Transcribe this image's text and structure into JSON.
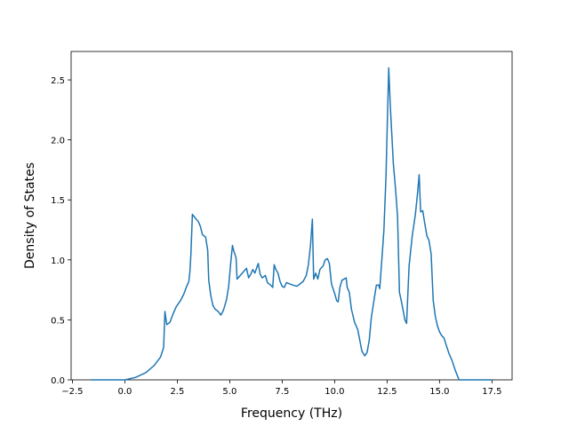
{
  "chart_data": {
    "type": "line",
    "xlabel": "Frequency (THz)",
    "ylabel": "Density of States",
    "xlim": [
      -2.56,
      18.46
    ],
    "ylim": [
      0,
      2.737
    ],
    "xticks": [
      {
        "value": -2.5,
        "label": "−2.5"
      },
      {
        "value": 0,
        "label": "0.0"
      },
      2.5,
      {
        "value": 5,
        "label": "5.0"
      },
      7.5,
      {
        "value": 10,
        "label": "10.0"
      },
      12.5,
      {
        "value": 15,
        "label": "15.0"
      },
      17.5
    ],
    "yticks": [
      {
        "value": 0,
        "label": "0.0"
      },
      0.5,
      {
        "value": 1,
        "label": "1.0"
      },
      1.5,
      {
        "value": 2,
        "label": "2.0"
      },
      2.5
    ],
    "series": [
      {
        "color": "#1f77b4",
        "x": [
          -1.6,
          0,
          0.5,
          1.0,
          1.4,
          1.7,
          1.85,
          1.91,
          2.0,
          2.15,
          2.3,
          2.45,
          2.65,
          2.8,
          2.95,
          3.05,
          3.1,
          3.15,
          3.22,
          3.35,
          3.5,
          3.6,
          3.7,
          3.85,
          3.95,
          4.0,
          4.1,
          4.2,
          4.3,
          4.45,
          4.58,
          4.7,
          4.85,
          4.95,
          5.05,
          5.13,
          5.2,
          5.3,
          5.35,
          5.5,
          5.65,
          5.8,
          5.9,
          6.0,
          6.1,
          6.2,
          6.3,
          6.36,
          6.45,
          6.55,
          6.7,
          6.8,
          6.95,
          7.05,
          7.12,
          7.2,
          7.3,
          7.4,
          7.5,
          7.6,
          7.7,
          7.85,
          8.0,
          8.2,
          8.35,
          8.5,
          8.65,
          8.75,
          8.85,
          8.94,
          9.0,
          9.1,
          9.2,
          9.3,
          9.45,
          9.55,
          9.66,
          9.75,
          9.85,
          10.0,
          10.1,
          10.17,
          10.25,
          10.35,
          10.45,
          10.55,
          10.6,
          10.7,
          10.8,
          10.95,
          11.1,
          11.2,
          11.3,
          11.44,
          11.55,
          11.65,
          11.75,
          11.9,
          11.99,
          12.1,
          12.15,
          12.25,
          12.35,
          12.45,
          12.52,
          12.58,
          12.65,
          12.8,
          12.9,
          13.0,
          13.09,
          13.2,
          13.35,
          13.43,
          13.55,
          13.7,
          13.85,
          13.95,
          14.03,
          14.1,
          14.2,
          14.3,
          14.4,
          14.5,
          14.6,
          14.7,
          14.8,
          14.9,
          15.0,
          15.1,
          15.21,
          15.3,
          15.45,
          15.6,
          15.75,
          15.93,
          17.5
        ],
        "values": [
          0,
          0,
          0.02,
          0.06,
          0.12,
          0.19,
          0.27,
          0.57,
          0.46,
          0.48,
          0.55,
          0.61,
          0.66,
          0.71,
          0.78,
          0.82,
          0.9,
          1.05,
          1.38,
          1.35,
          1.32,
          1.28,
          1.21,
          1.19,
          1.08,
          0.83,
          0.7,
          0.62,
          0.59,
          0.57,
          0.54,
          0.58,
          0.67,
          0.78,
          0.98,
          1.12,
          1.07,
          1.02,
          0.84,
          0.87,
          0.9,
          0.93,
          0.85,
          0.88,
          0.92,
          0.89,
          0.94,
          0.97,
          0.88,
          0.85,
          0.87,
          0.81,
          0.79,
          0.77,
          0.96,
          0.92,
          0.89,
          0.82,
          0.78,
          0.77,
          0.81,
          0.8,
          0.79,
          0.78,
          0.8,
          0.82,
          0.87,
          0.96,
          1.12,
          1.34,
          0.84,
          0.89,
          0.84,
          0.92,
          0.95,
          1.0,
          1.01,
          0.97,
          0.8,
          0.72,
          0.66,
          0.65,
          0.77,
          0.83,
          0.84,
          0.85,
          0.77,
          0.73,
          0.59,
          0.48,
          0.42,
          0.33,
          0.24,
          0.2,
          0.23,
          0.33,
          0.52,
          0.69,
          0.79,
          0.79,
          0.76,
          1.0,
          1.25,
          1.7,
          2.2,
          2.6,
          2.3,
          1.8,
          1.6,
          1.36,
          0.73,
          0.64,
          0.5,
          0.47,
          0.95,
          1.2,
          1.38,
          1.55,
          1.71,
          1.4,
          1.41,
          1.3,
          1.2,
          1.16,
          1.05,
          0.66,
          0.53,
          0.45,
          0.4,
          0.37,
          0.35,
          0.3,
          0.22,
          0.16,
          0.08,
          0,
          0
        ]
      }
    ]
  }
}
